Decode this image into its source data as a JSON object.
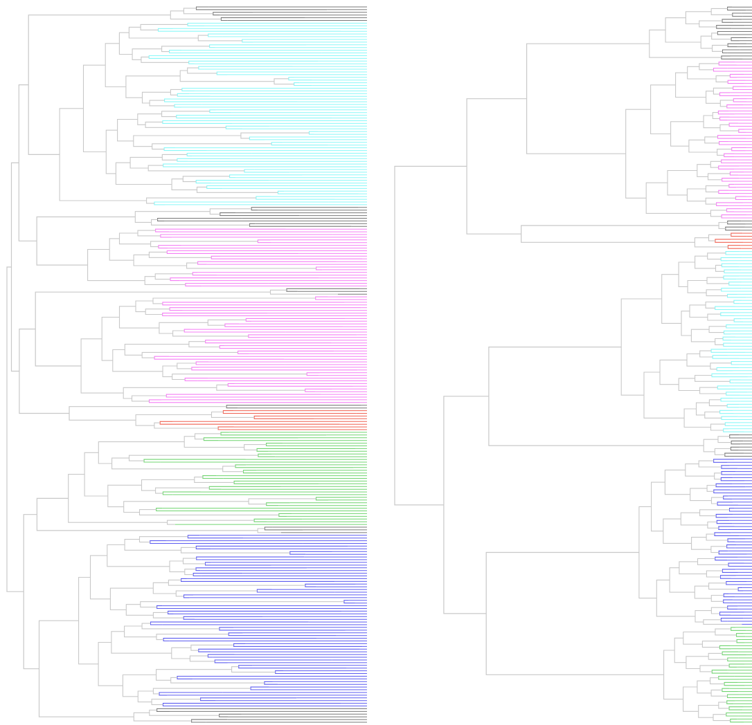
{
  "figure": {
    "description_visible_text": "",
    "panels": [
      {
        "id": "left-dendrogram",
        "orientation": "leaves-right",
        "clusters": [
          {
            "name": "gray-top",
            "color": "#777777",
            "leaves": 6
          },
          {
            "name": "cyan",
            "color": "#88f8f8",
            "leaves": 68
          },
          {
            "name": "gray-mid1",
            "color": "#777777",
            "leaves": 8
          },
          {
            "name": "magenta-a",
            "color": "#f57cf5",
            "leaves": 22
          },
          {
            "name": "gray-mid2",
            "color": "#777777",
            "leaves": 3
          },
          {
            "name": "magenta-b",
            "color": "#f57cf5",
            "leaves": 40
          },
          {
            "name": "gray-mid3",
            "color": "#777777",
            "leaves": 2
          },
          {
            "name": "red",
            "color": "#f06050",
            "leaves": 8
          },
          {
            "name": "green",
            "color": "#6fd46f",
            "leaves": 35
          },
          {
            "name": "gray-mid4",
            "color": "#777777",
            "leaves": 3
          },
          {
            "name": "blue",
            "color": "#5a5af0",
            "leaves": 64
          },
          {
            "name": "gray-bottom",
            "color": "#777777",
            "leaves": 6
          }
        ]
      },
      {
        "id": "right-dendrogram",
        "orientation": "leaves-right",
        "clusters": [
          {
            "name": "gray-top",
            "color": "#777777",
            "leaves": 18
          },
          {
            "name": "magenta",
            "color": "#f57cf5",
            "leaves": 52
          },
          {
            "name": "gray-mid1",
            "color": "#777777",
            "leaves": 4
          },
          {
            "name": "red",
            "color": "#f06050",
            "leaves": 6
          },
          {
            "name": "cyan",
            "color": "#88f8f8",
            "leaves": 60
          },
          {
            "name": "gray-mid2",
            "color": "#777777",
            "leaves": 8
          },
          {
            "name": "blue",
            "color": "#5a5af0",
            "leaves": 55
          },
          {
            "name": "green",
            "color": "#6fd46f",
            "leaves": 32
          }
        ]
      }
    ]
  }
}
